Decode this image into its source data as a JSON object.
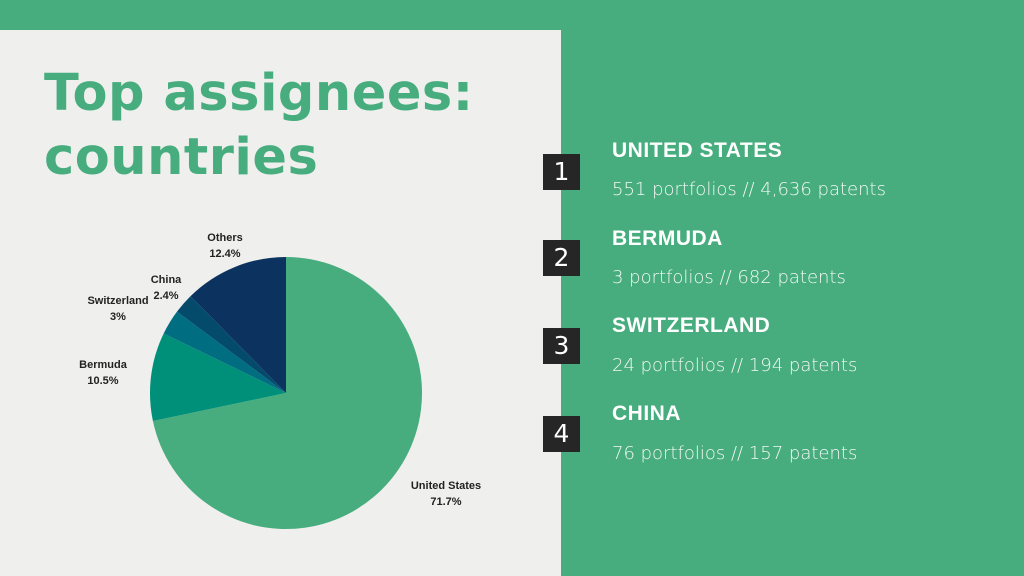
{
  "title": {
    "line1": "Top assignees:",
    "line2": "countries"
  },
  "chart_data": {
    "type": "pie",
    "categories": [
      "United States",
      "Bermuda",
      "Switzerland",
      "China",
      "Others"
    ],
    "values": [
      71.7,
      10.5,
      3,
      2.4,
      12.4
    ],
    "value_labels": [
      "71.7%",
      "10.5%",
      "3%",
      "2.4%",
      "12.4%"
    ],
    "colors": [
      "#47ad7e",
      "#00907a",
      "#006d80",
      "#034a6b",
      "#0c3360"
    ],
    "start": "12 o'clock",
    "direction": "clockwise"
  },
  "rankings": [
    {
      "rank": "1",
      "country": "UNITED STATES",
      "detail": "551 portfolios // 4,636 patents"
    },
    {
      "rank": "2",
      "country": "BERMUDA",
      "detail": "3 portfolios // 682 patents"
    },
    {
      "rank": "3",
      "country": "SWITZERLAND",
      "detail": "24 portfolios // 194 patents"
    },
    {
      "rank": "4",
      "country": "CHINA",
      "detail": "76 portfolios // 157 patents"
    }
  ]
}
